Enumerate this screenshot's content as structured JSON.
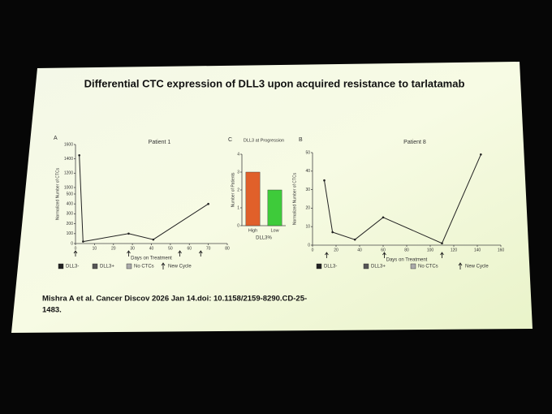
{
  "slide": {
    "title": "Differential CTC expression of DLL3 upon acquired resistance to tarlatamab",
    "citation": [
      "Mishra A et al. Cancer Discov 2026 Jan 14.doi: 10.1158/2159-8290.CD-25-",
      "1483."
    ]
  },
  "chart_data": [
    {
      "type": "line",
      "panel": "A",
      "title": "Patient 1",
      "x_label": "Days on Treatment",
      "y_label": "Normalized Number of CTCs",
      "x": [
        2,
        4,
        28,
        41,
        70
      ],
      "values": [
        1450,
        20,
        100,
        40,
        400
      ],
      "color": "#222222",
      "xlim": [
        0,
        80
      ],
      "xticks": [
        0,
        10,
        20,
        30,
        40,
        50,
        60,
        70,
        80
      ],
      "ylim": [
        0,
        1600
      ],
      "ybreak": [
        500,
        1000
      ],
      "yticks": [
        0,
        100,
        200,
        300,
        400,
        500,
        1000,
        1200,
        1400,
        1600
      ],
      "new_cycle_days": [
        0,
        28,
        55,
        66
      ],
      "legend_items": [
        "DLL3-",
        "DLL3+",
        "No CTCs",
        "New Cycle"
      ]
    },
    {
      "type": "bar",
      "panel": "C",
      "title": "DLL3 at Progression",
      "x_label": "DLL3%",
      "y_label": "Number of Patients",
      "categories": [
        "High",
        "Low"
      ],
      "values": [
        3,
        2
      ],
      "colors": [
        "#e0602a",
        "#3ecb3a"
      ],
      "ylim": [
        0,
        4
      ],
      "yticks": [
        0,
        1,
        2,
        3,
        4
      ]
    },
    {
      "type": "line",
      "panel": "B",
      "title": "Patient 8",
      "x_label": "Days on Treatment",
      "y_label": "Normalized Number of CTCs",
      "x": [
        10,
        17,
        36,
        60,
        110,
        143
      ],
      "values": [
        35,
        7,
        3,
        15,
        1,
        49
      ],
      "color": "#222222",
      "xlim": [
        0,
        160
      ],
      "xticks": [
        0,
        20,
        40,
        60,
        80,
        100,
        120,
        140,
        160
      ],
      "ylim": [
        0,
        50
      ],
      "yticks": [
        0,
        10,
        20,
        30,
        40,
        50
      ],
      "new_cycle_days": [
        12,
        61,
        110
      ],
      "legend_items": [
        "DLL3-",
        "DLL3+",
        "No CTCs",
        "New Cycle"
      ]
    }
  ]
}
